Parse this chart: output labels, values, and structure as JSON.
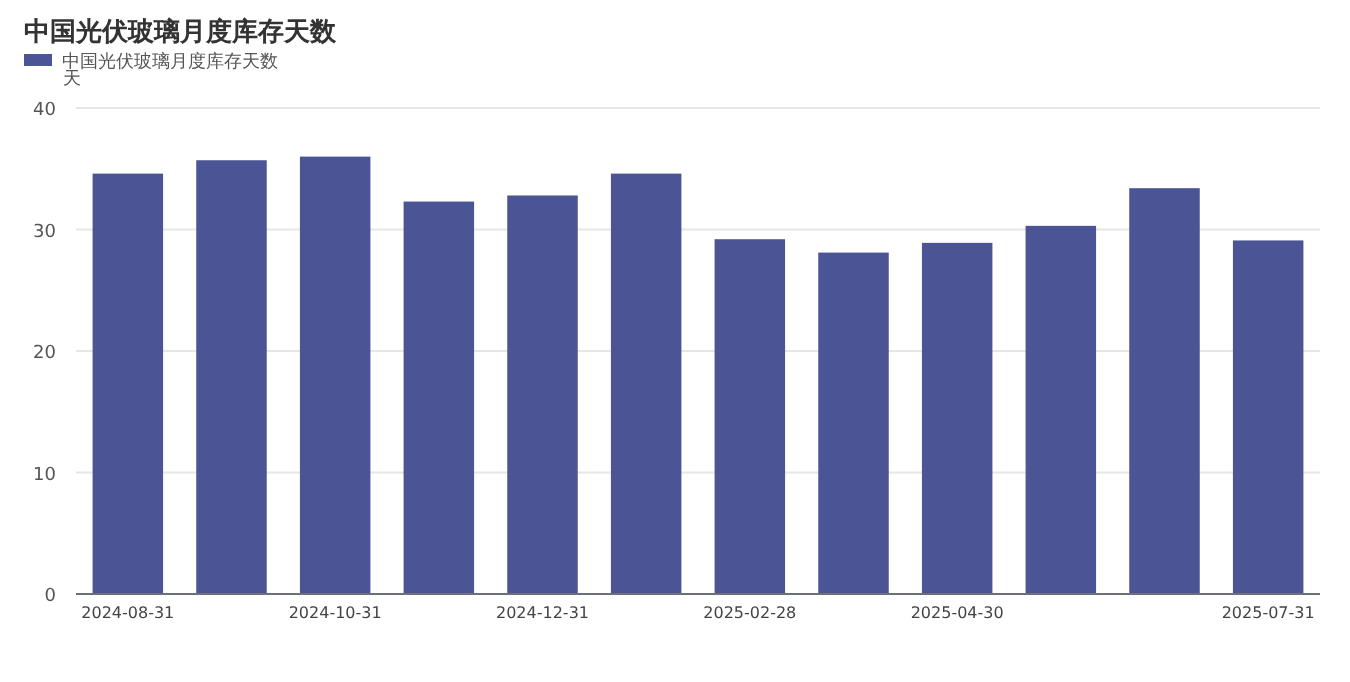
{
  "chart_data": {
    "type": "bar",
    "title": "中国光伏玻璃月度库存天数",
    "ylabel": "天",
    "categories": [
      "2024-08-31",
      null,
      "2024-10-31",
      null,
      "2024-12-31",
      null,
      "2025-02-28",
      null,
      "2025-04-30",
      null,
      null,
      "2025-07-31"
    ],
    "series": [
      {
        "name": "中国光伏玻璃月度库存天数",
        "color": "#4b5595",
        "values": [
          34.6,
          35.7,
          36.0,
          32.3,
          32.8,
          34.6,
          29.2,
          28.1,
          28.9,
          30.3,
          33.4,
          29.1
        ]
      }
    ],
    "ylim": [
      0,
      40
    ],
    "yticks": [
      0,
      10,
      20,
      30,
      40
    ],
    "grid": "y",
    "legend": "top left"
  }
}
